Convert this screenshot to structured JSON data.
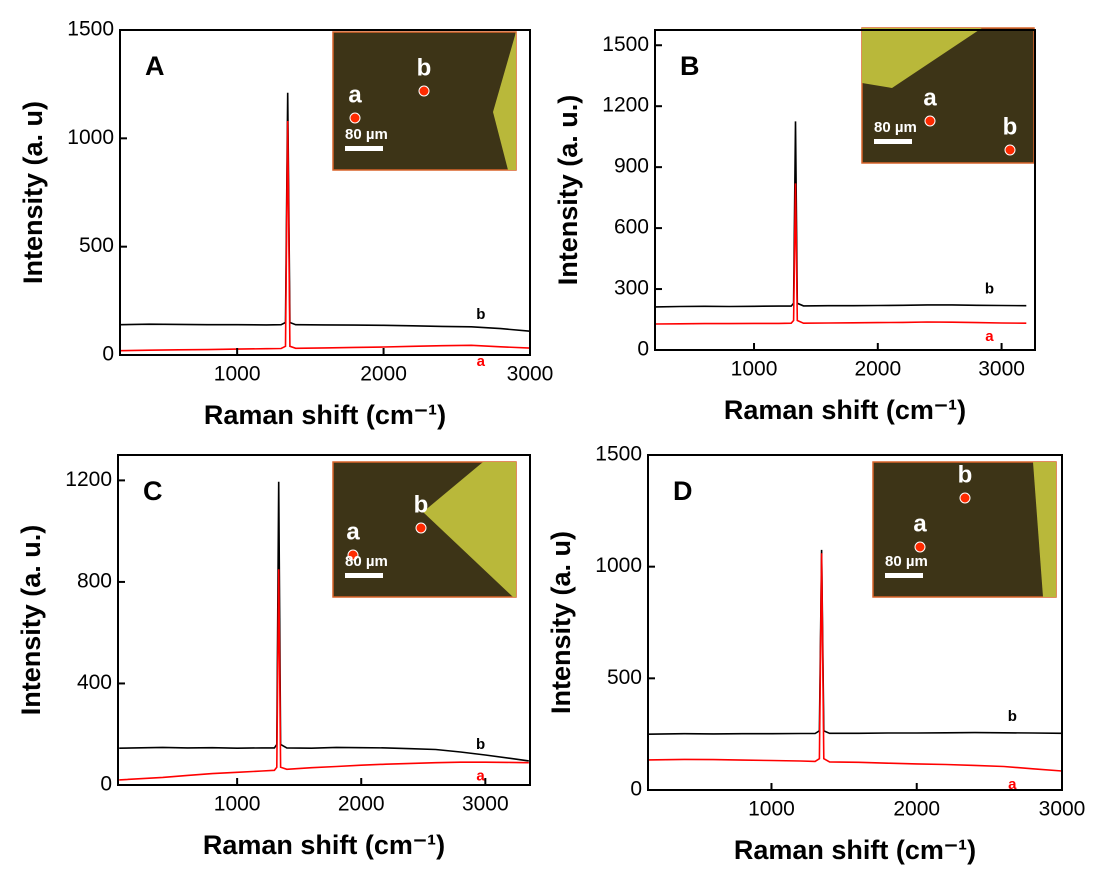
{
  "chart_data": [
    {
      "type": "line",
      "panel_label": "A",
      "xlabel": "Raman shift (cm⁻¹)",
      "ylabel": "Intensity (a. u)",
      "xlim": [
        200,
        3000
      ],
      "xticks": [
        1000,
        2000,
        3000
      ],
      "ylim": [
        0,
        1500
      ],
      "yticks": [
        0,
        500,
        1000,
        1500
      ],
      "inset": {
        "points": [
          "a",
          "b"
        ],
        "scale_bar": "80 µm"
      },
      "x": [
        200,
        400,
        600,
        800,
        1000,
        1200,
        1300,
        1330,
        1345,
        1360,
        1400,
        1600,
        1800,
        2000,
        2200,
        2400,
        2600,
        2800,
        3000
      ],
      "series": [
        {
          "name": "b",
          "color": "#000000",
          "values": [
            140,
            142,
            141,
            140,
            140,
            139,
            140,
            150,
            1210,
            150,
            140,
            139,
            138,
            137,
            135,
            132,
            130,
            122,
            110
          ]
        },
        {
          "name": "a",
          "color": "#ff0000",
          "values": [
            20,
            22,
            24,
            25,
            27,
            29,
            30,
            40,
            1080,
            40,
            31,
            33,
            35,
            37,
            40,
            43,
            45,
            38,
            32
          ]
        }
      ]
    },
    {
      "type": "line",
      "panel_label": "B",
      "xlabel": "Raman shift (cm⁻¹)",
      "ylabel": "Intensity (a. u.)",
      "xlim": [
        200,
        3270
      ],
      "xticks": [
        1000,
        2000,
        3000
      ],
      "ylim": [
        0,
        1575
      ],
      "yticks": [
        0,
        300,
        600,
        900,
        1200,
        1500
      ],
      "inset": {
        "points": [
          "a",
          "b"
        ],
        "scale_bar": "80 µm"
      },
      "x": [
        200,
        400,
        600,
        800,
        1000,
        1200,
        1300,
        1320,
        1335,
        1350,
        1400,
        1600,
        1800,
        2000,
        2200,
        2400,
        2600,
        2800,
        3000,
        3200
      ],
      "series": [
        {
          "name": "b",
          "color": "#000000",
          "values": [
            212,
            214,
            215,
            214,
            215,
            216,
            216,
            230,
            1125,
            230,
            217,
            218,
            218,
            219,
            220,
            222,
            222,
            220,
            219,
            218
          ]
        },
        {
          "name": "a",
          "color": "#ff0000",
          "values": [
            128,
            129,
            130,
            130,
            131,
            131,
            132,
            145,
            820,
            145,
            132,
            133,
            134,
            135,
            136,
            138,
            137,
            135,
            133,
            132
          ]
        }
      ]
    },
    {
      "type": "line",
      "panel_label": "C",
      "xlabel": "Raman shift (cm⁻¹)",
      "ylabel": "Intensity (a. u.)",
      "xlim": [
        40,
        3360
      ],
      "xticks": [
        1000,
        2000,
        3000
      ],
      "ylim": [
        0,
        1300
      ],
      "yticks": [
        0,
        400,
        800,
        1200
      ],
      "inset": {
        "points": [
          "a",
          "b"
        ],
        "scale_bar": "80 µm"
      },
      "x": [
        50,
        400,
        600,
        800,
        1000,
        1200,
        1300,
        1320,
        1335,
        1350,
        1400,
        1600,
        1800,
        2000,
        2200,
        2400,
        2600,
        2800,
        3000,
        3200,
        3350
      ],
      "series": [
        {
          "name": "b",
          "color": "#000000",
          "values": [
            145,
            148,
            146,
            147,
            145,
            146,
            146,
            160,
            1195,
            160,
            146,
            145,
            148,
            147,
            146,
            143,
            140,
            130,
            118,
            105,
            95
          ]
        },
        {
          "name": "a",
          "color": "#ff0000",
          "values": [
            20,
            30,
            38,
            45,
            50,
            55,
            58,
            70,
            850,
            70,
            62,
            68,
            73,
            78,
            82,
            85,
            88,
            90,
            90,
            89,
            88
          ]
        }
      ]
    },
    {
      "type": "line",
      "panel_label": "D",
      "xlabel": "Raman shift (cm⁻¹)",
      "ylabel": "Intensity (a. u)",
      "xlim": [
        150,
        3000
      ],
      "xticks": [
        1000,
        2000,
        3000
      ],
      "ylim": [
        0,
        1500
      ],
      "yticks": [
        0,
        500,
        1000,
        1500
      ],
      "inset": {
        "points": [
          "a",
          "b"
        ],
        "scale_bar": "80 µm"
      },
      "x": [
        150,
        400,
        600,
        800,
        1000,
        1200,
        1300,
        1330,
        1345,
        1360,
        1400,
        1600,
        1800,
        2000,
        2200,
        2400,
        2600,
        2800,
        3000
      ],
      "series": [
        {
          "name": "b",
          "color": "#000000",
          "values": [
            250,
            252,
            251,
            252,
            252,
            253,
            253,
            265,
            1075,
            265,
            254,
            254,
            255,
            255,
            256,
            257,
            256,
            255,
            254
          ]
        },
        {
          "name": "a",
          "color": "#ff0000",
          "values": [
            135,
            137,
            136,
            134,
            132,
            130,
            128,
            140,
            1060,
            140,
            126,
            124,
            120,
            117,
            114,
            110,
            105,
            95,
            85
          ]
        }
      ]
    }
  ]
}
